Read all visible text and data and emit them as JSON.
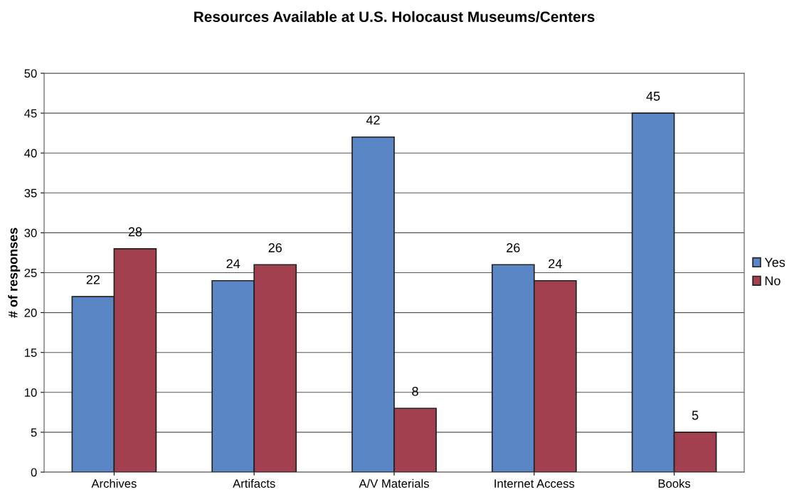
{
  "chart_data": {
    "type": "bar",
    "title": "Resources Available at U.S. Holocaust Museums/Centers",
    "ylabel": "# of responses",
    "categories": [
      "Archives",
      "Artifacts",
      "A/V Materials",
      "Internet Access",
      "Books"
    ],
    "series": [
      {
        "name": "Yes",
        "color": "#5a86c6",
        "values": [
          22,
          24,
          42,
          26,
          45
        ]
      },
      {
        "name": "No",
        "color": "#a2404f",
        "values": [
          28,
          26,
          8,
          24,
          5
        ]
      }
    ],
    "ylim": [
      0,
      50
    ],
    "yticks": [
      0,
      5,
      10,
      15,
      20,
      25,
      30,
      35,
      40,
      45,
      50
    ],
    "grid": "y",
    "legend": "right",
    "data_labels": true
  }
}
